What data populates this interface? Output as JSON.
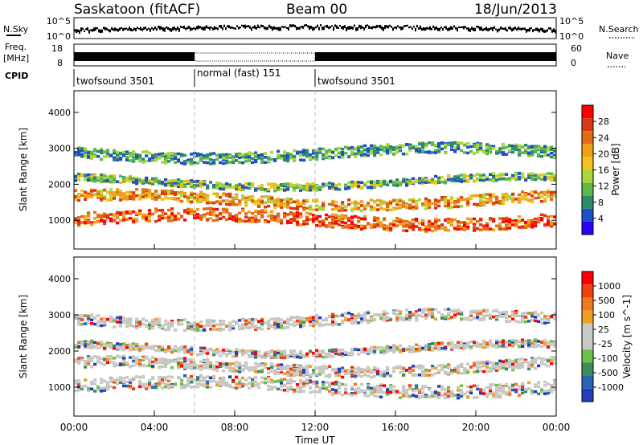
{
  "header": {
    "station": "Saskatoon (fitACF)",
    "beam": "Beam 00",
    "date": "18/Jun/2013"
  },
  "left_labels": {
    "nsky": "N.Sky",
    "freq_line1": "Freq.",
    "freq_line2": "[MHz]",
    "cpid": "CPID"
  },
  "right_labels": {
    "nsearch": "N.Search",
    "nave": "Nave"
  },
  "noise_panel": {
    "left_ticks": [
      "10^5",
      "10^0"
    ],
    "right_ticks": [
      "10^5",
      "10^0"
    ]
  },
  "freq_panel": {
    "left_ticks": [
      "18",
      "8"
    ],
    "right_ticks": [
      "60",
      "0"
    ]
  },
  "cpid_segments": [
    {
      "label": "twofsound 3501",
      "start": 0,
      "end": 6
    },
    {
      "label": "normal (fast) 151",
      "start": 6,
      "end": 12
    },
    {
      "label": "twofsound 3501",
      "start": 12,
      "end": 24
    }
  ],
  "chart_data": [
    {
      "type": "heatmap",
      "name": "power",
      "ylabel": "Slant Range [km]",
      "colorbar_label": "Power [dB]",
      "yticks": [
        "1000",
        "2000",
        "3000",
        "4000"
      ],
      "ylim": [
        200,
        4600
      ],
      "colorbar_ticks": [
        "28",
        "24",
        "20",
        "16",
        "12",
        "8",
        "4"
      ],
      "colors": [
        "#2b00ff",
        "#1e50c8",
        "#2f8a6a",
        "#5fb84a",
        "#a8d63c",
        "#f2c21c",
        "#f0a018",
        "#e06d16",
        "#d83a14",
        "#ff0000"
      ]
    },
    {
      "type": "heatmap",
      "name": "velocity",
      "ylabel": "Slant Range [km]",
      "colorbar_label": "Velocity [m s^-1]",
      "yticks": [
        "1000",
        "2000",
        "3000",
        "4000"
      ],
      "ylim": [
        200,
        4600
      ],
      "colorbar_ticks": [
        "1000",
        "500",
        "100",
        "25",
        "-25",
        "-100",
        "-500",
        "-1000"
      ],
      "colors": [
        "#1f3fbf",
        "#2a64b4",
        "#3c8c5c",
        "#6ec04a",
        "#c8c8c4",
        "#c8c8c4",
        "#f0a020",
        "#f07820",
        "#f04010",
        "#ff0000"
      ]
    }
  ],
  "x_axis": {
    "label": "Time UT",
    "ticks": [
      "00:00",
      "04:00",
      "08:00",
      "12:00",
      "16:00",
      "20:00",
      "00:00"
    ],
    "xlim_hours": [
      0,
      24
    ]
  }
}
